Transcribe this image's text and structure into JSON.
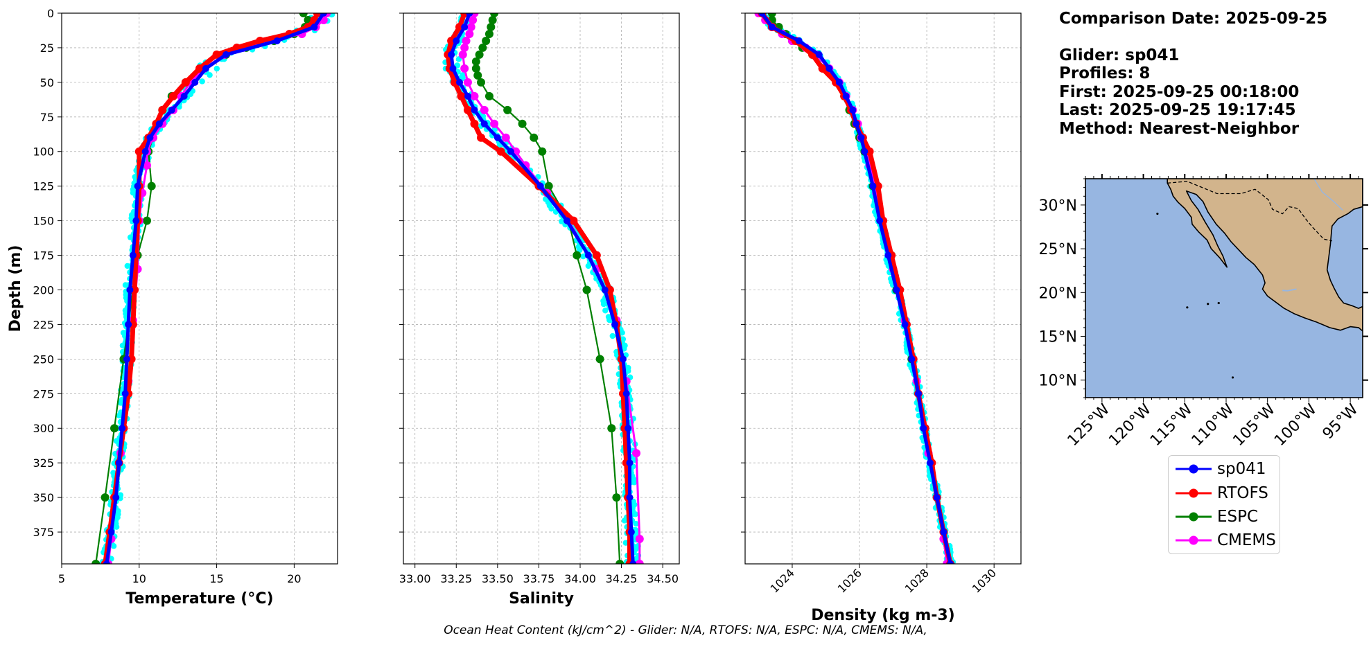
{
  "info": {
    "comparison_date": "Comparison Date: 2025-09-25",
    "glider": "Glider: sp041",
    "profiles": "Profiles: 8",
    "first": "First: 2025-09-25 00:18:00",
    "last": "Last: 2025-09-25 19:17:45",
    "method": "Method: Nearest-Neighbor"
  },
  "footer": "Ocean Heat Content (kJ/cm^2) - Glider: N/A,  RTOFS: N/A,  ESPC: N/A,  CMEMS: N/A,",
  "colors": {
    "sp041": "#0000ff",
    "RTOFS": "#ff0000",
    "ESPC": "#008000",
    "CMEMS": "#ff00ff",
    "glider_profiles": "#00ffff",
    "ocean": "#97b6e1",
    "land": "#d2b48c",
    "grid": "#b0b0b0"
  },
  "legend": {
    "placement": "below-map",
    "items": [
      "sp041",
      "RTOFS",
      "ESPC",
      "CMEMS"
    ]
  },
  "chart_data": [
    {
      "type": "line",
      "xlabel": "Temperature (°C)",
      "ylabel": "Depth (m)",
      "xlim": [
        5,
        22.8
      ],
      "ylim": [
        398,
        0
      ],
      "xticks": [
        "5",
        "10",
        "15",
        "20"
      ],
      "yticks": [
        "0",
        "25",
        "50",
        "75",
        "100",
        "125",
        "150",
        "175",
        "200",
        "225",
        "250",
        "275",
        "300",
        "325",
        "350",
        "375"
      ],
      "grid": true,
      "series": [
        {
          "name": "sp041",
          "depth": [
            0,
            10,
            20,
            30,
            40,
            50,
            60,
            70,
            80,
            90,
            100,
            125,
            150,
            175,
            200,
            225,
            250,
            275,
            300,
            325,
            350,
            375,
            398
          ],
          "values": [
            21.9,
            21.3,
            18.9,
            15.6,
            14.3,
            13.6,
            12.9,
            12.1,
            11.3,
            10.7,
            10.4,
            9.9,
            9.8,
            9.6,
            9.4,
            9.3,
            9.2,
            9.1,
            8.9,
            8.7,
            8.5,
            8.2,
            7.9
          ]
        },
        {
          "name": "RTOFS",
          "depth": [
            0,
            5,
            10,
            15,
            20,
            25,
            30,
            40,
            50,
            60,
            70,
            80,
            90,
            100,
            125,
            150,
            175,
            200,
            225,
            250,
            275,
            300,
            325,
            350,
            375,
            398
          ],
          "values": [
            21.5,
            21.3,
            20.9,
            19.7,
            17.8,
            16.3,
            15.0,
            13.9,
            13.0,
            12.2,
            11.5,
            11.1,
            10.6,
            10.0,
            10.0,
            9.9,
            9.8,
            9.7,
            9.6,
            9.5,
            9.3,
            9.0,
            8.7,
            8.4,
            8.1,
            7.8
          ]
        },
        {
          "name": "ESPC",
          "depth": [
            0,
            5,
            10,
            15,
            20,
            25,
            30,
            40,
            50,
            60,
            70,
            80,
            90,
            100,
            125,
            150,
            175,
            200,
            250,
            300,
            350,
            398
          ],
          "values": [
            20.6,
            20.9,
            20.7,
            20.0,
            18.7,
            16.9,
            15.6,
            14.2,
            13.0,
            12.1,
            11.5,
            11.2,
            10.9,
            10.6,
            10.8,
            10.5,
            9.9,
            9.6,
            9.0,
            8.4,
            7.8,
            7.2
          ]
        },
        {
          "name": "CMEMS",
          "depth": [
            0,
            5,
            10,
            15,
            20,
            25,
            30,
            40,
            50,
            60,
            70,
            80,
            90,
            100,
            110,
            130,
            150,
            185,
            222,
            266,
            318,
            380,
            398
          ],
          "values": [
            22.1,
            21.9,
            21.4,
            20.5,
            18.3,
            16.7,
            15.5,
            14.2,
            13.3,
            12.7,
            12.2,
            11.5,
            10.9,
            10.5,
            10.5,
            10.2,
            10.0,
            9.9,
            9.6,
            9.3,
            8.8,
            8.2,
            8.0
          ]
        }
      ]
    },
    {
      "type": "line",
      "xlabel": "Salinity",
      "xlim": [
        32.93,
        34.6
      ],
      "ylim": [
        398,
        0
      ],
      "xticks": [
        "33.00",
        "33.25",
        "33.50",
        "33.75",
        "34.00",
        "34.25",
        "34.50"
      ],
      "grid": true,
      "series": [
        {
          "name": "sp041",
          "depth": [
            0,
            10,
            20,
            30,
            40,
            50,
            60,
            70,
            80,
            90,
            100,
            125,
            150,
            175,
            200,
            225,
            250,
            275,
            300,
            325,
            350,
            375,
            398
          ],
          "values": [
            33.33,
            33.3,
            33.25,
            33.22,
            33.23,
            33.27,
            33.32,
            33.36,
            33.42,
            33.5,
            33.58,
            33.76,
            33.92,
            34.05,
            34.15,
            34.21,
            34.26,
            34.28,
            34.29,
            34.3,
            34.3,
            34.31,
            34.32
          ]
        },
        {
          "name": "RTOFS",
          "depth": [
            0,
            10,
            20,
            30,
            40,
            50,
            60,
            70,
            80,
            90,
            100,
            125,
            150,
            175,
            200,
            225,
            250,
            275,
            300,
            325,
            350,
            375,
            398
          ],
          "values": [
            33.3,
            33.27,
            33.22,
            33.2,
            33.21,
            33.24,
            33.28,
            33.32,
            33.36,
            33.4,
            33.52,
            33.75,
            33.96,
            34.1,
            34.18,
            34.22,
            34.25,
            34.26,
            34.27,
            34.28,
            34.29,
            34.3,
            34.3
          ]
        },
        {
          "name": "ESPC",
          "depth": [
            0,
            5,
            10,
            15,
            20,
            25,
            30,
            35,
            40,
            45,
            50,
            60,
            70,
            80,
            90,
            100,
            125,
            150,
            175,
            200,
            250,
            300,
            350,
            398
          ],
          "values": [
            33.48,
            33.47,
            33.46,
            33.45,
            33.43,
            33.41,
            33.39,
            33.37,
            33.37,
            33.38,
            33.4,
            33.45,
            33.56,
            33.65,
            33.72,
            33.77,
            33.81,
            33.93,
            33.98,
            34.04,
            34.12,
            34.19,
            34.22,
            34.24
          ]
        },
        {
          "name": "CMEMS",
          "depth": [
            0,
            5,
            10,
            15,
            20,
            25,
            30,
            40,
            50,
            60,
            70,
            80,
            90,
            100,
            110,
            130,
            150,
            185,
            222,
            266,
            318,
            380,
            398
          ],
          "values": [
            33.36,
            33.35,
            33.34,
            33.33,
            33.31,
            33.3,
            33.29,
            33.3,
            33.32,
            33.36,
            33.42,
            33.48,
            33.55,
            33.61,
            33.67,
            33.8,
            33.93,
            34.1,
            34.22,
            34.28,
            34.34,
            34.36,
            34.36
          ]
        }
      ]
    },
    {
      "type": "line",
      "xlabel": "Density (kg m-3)",
      "xlim": [
        1022.6,
        1030.8
      ],
      "ylim": [
        398,
        0
      ],
      "xticks": [
        "1024",
        "1026",
        "1028",
        "1030"
      ],
      "grid": true,
      "series": [
        {
          "name": "sp041",
          "depth": [
            0,
            10,
            20,
            30,
            40,
            50,
            60,
            70,
            80,
            90,
            100,
            125,
            150,
            175,
            200,
            225,
            250,
            275,
            300,
            325,
            350,
            375,
            398
          ],
          "values": [
            1023.1,
            1023.4,
            1024.2,
            1024.8,
            1025.1,
            1025.4,
            1025.6,
            1025.8,
            1025.9,
            1026.05,
            1026.15,
            1026.4,
            1026.6,
            1026.85,
            1027.1,
            1027.35,
            1027.55,
            1027.75,
            1027.9,
            1028.1,
            1028.3,
            1028.5,
            1028.7
          ]
        },
        {
          "name": "RTOFS",
          "depth": [
            0,
            10,
            20,
            30,
            40,
            50,
            60,
            70,
            80,
            90,
            100,
            125,
            150,
            175,
            200,
            225,
            250,
            275,
            300,
            325,
            350,
            375,
            398
          ],
          "values": [
            1023.1,
            1023.4,
            1024.1,
            1024.6,
            1024.9,
            1025.3,
            1025.55,
            1025.75,
            1025.9,
            1026.1,
            1026.3,
            1026.55,
            1026.7,
            1026.95,
            1027.2,
            1027.4,
            1027.6,
            1027.75,
            1027.95,
            1028.15,
            1028.3,
            1028.5,
            1028.7
          ]
        },
        {
          "name": "ESPC",
          "depth": [
            0,
            5,
            10,
            15,
            20,
            25,
            30,
            40,
            50,
            60,
            70,
            80,
            90,
            100,
            125,
            150,
            175,
            200,
            250,
            300,
            350,
            398
          ],
          "values": [
            1023.4,
            1023.4,
            1023.6,
            1023.8,
            1024.0,
            1024.3,
            1024.6,
            1025.0,
            1025.35,
            1025.55,
            1025.7,
            1025.85,
            1026.0,
            1026.15,
            1026.4,
            1026.65,
            1026.95,
            1027.1,
            1027.55,
            1027.95,
            1028.3,
            1028.6
          ]
        },
        {
          "name": "CMEMS",
          "depth": [
            0,
            5,
            10,
            15,
            20,
            25,
            30,
            40,
            50,
            60,
            70,
            80,
            90,
            100,
            110,
            130,
            150,
            185,
            222,
            266,
            318,
            380,
            398
          ],
          "values": [
            1023.0,
            1023.2,
            1023.4,
            1023.7,
            1024.0,
            1024.4,
            1024.7,
            1025.1,
            1025.4,
            1025.6,
            1025.8,
            1025.95,
            1026.05,
            1026.2,
            1026.3,
            1026.5,
            1026.7,
            1027.0,
            1027.35,
            1027.7,
            1028.05,
            1028.5,
            1028.6
          ]
        }
      ]
    },
    {
      "type": "map",
      "lon_range": [
        -127,
        -93.5
      ],
      "lat_range": [
        8,
        33
      ],
      "lon_ticks": [
        "125°W",
        "120°W",
        "115°W",
        "110°W",
        "105°W",
        "100°W",
        "95°W"
      ],
      "lat_ticks": [
        "30°N",
        "25°N",
        "20°N",
        "15°N",
        "10°N"
      ]
    }
  ]
}
